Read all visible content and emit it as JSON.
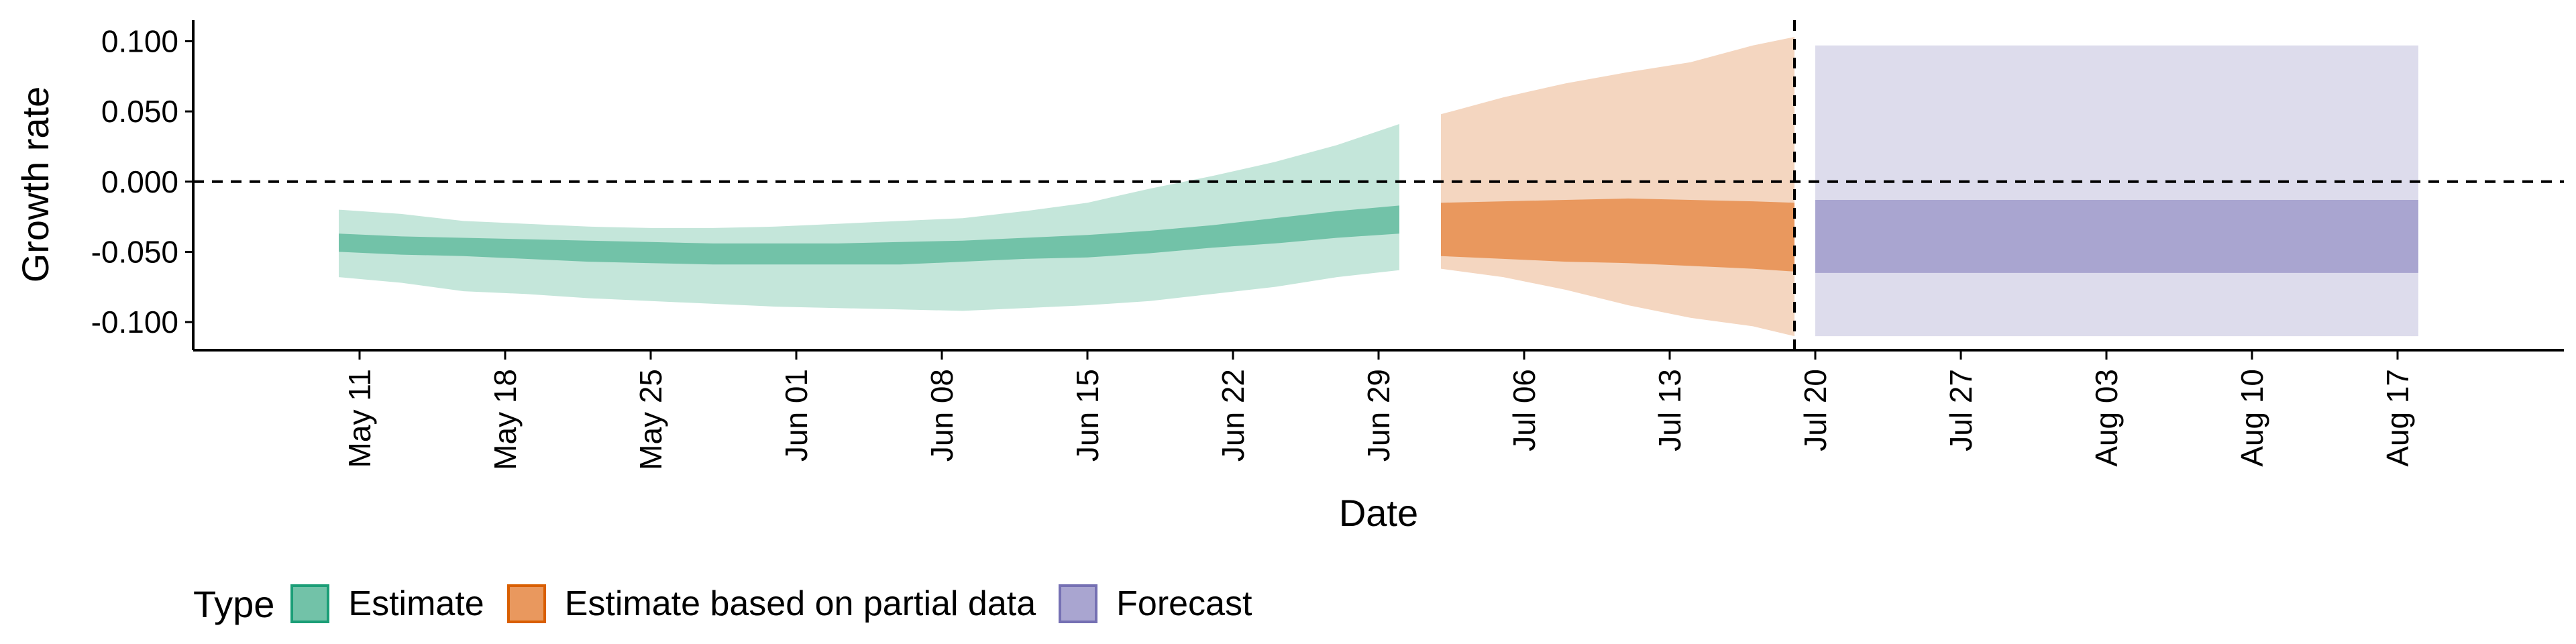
{
  "chart_data": {
    "type": "area",
    "title": "",
    "xlabel": "Date",
    "ylabel": "Growth rate",
    "ylim": [
      -0.12,
      0.115
    ],
    "yticks": [
      -0.1,
      -0.05,
      0,
      0.05,
      0.1
    ],
    "ytick_labels": [
      "-0.100",
      "-0.050",
      "0.000",
      "0.050",
      "0.100"
    ],
    "xlim": [
      "2020-05-03",
      "2020-08-25"
    ],
    "xticks": [
      "2020-05-11",
      "2020-05-18",
      "2020-05-25",
      "2020-06-01",
      "2020-06-08",
      "2020-06-15",
      "2020-06-22",
      "2020-06-29",
      "2020-07-06",
      "2020-07-13",
      "2020-07-20",
      "2020-07-27",
      "2020-08-03",
      "2020-08-10",
      "2020-08-17"
    ],
    "xtick_labels": [
      "May 11",
      "May 18",
      "May 25",
      "Jun 01",
      "Jun 08",
      "Jun 15",
      "Jun 22",
      "Jun 29",
      "Jul 06",
      "Jul 13",
      "Jul 20",
      "Jul 27",
      "Aug 03",
      "Aug 10",
      "Aug 17"
    ],
    "hline": 0,
    "vline": "2020-07-19",
    "grid": false,
    "legend": {
      "title": "Type",
      "placement": "bottom-left",
      "items": [
        {
          "label": "Estimate",
          "fill": "#72c2a8",
          "stroke": "#1b9e77"
        },
        {
          "label": "Estimate based on partial data",
          "fill": "#e9985e",
          "stroke": "#d95f02"
        },
        {
          "label": "Forecast",
          "fill": "#a9a5d0",
          "stroke": "#7570b3"
        }
      ]
    },
    "series": [
      {
        "name": "Estimate",
        "color_outer": "#c4e6da",
        "color_inner": "#72c2a8",
        "x": [
          "2020-05-10",
          "2020-05-13",
          "2020-05-16",
          "2020-05-19",
          "2020-05-22",
          "2020-05-25",
          "2020-05-28",
          "2020-05-31",
          "2020-06-03",
          "2020-06-06",
          "2020-06-09",
          "2020-06-12",
          "2020-06-15",
          "2020-06-18",
          "2020-06-21",
          "2020-06-24",
          "2020-06-27",
          "2020-06-30"
        ],
        "lower_90": [
          -0.068,
          -0.072,
          -0.078,
          -0.08,
          -0.083,
          -0.085,
          -0.087,
          -0.089,
          -0.09,
          -0.091,
          -0.092,
          -0.09,
          -0.088,
          -0.085,
          -0.08,
          -0.075,
          -0.068,
          -0.063
        ],
        "lower_50": [
          -0.05,
          -0.052,
          -0.053,
          -0.055,
          -0.057,
          -0.058,
          -0.059,
          -0.059,
          -0.059,
          -0.059,
          -0.057,
          -0.055,
          -0.054,
          -0.051,
          -0.047,
          -0.044,
          -0.04,
          -0.037
        ],
        "upper_50": [
          -0.037,
          -0.039,
          -0.04,
          -0.041,
          -0.042,
          -0.043,
          -0.044,
          -0.044,
          -0.044,
          -0.043,
          -0.042,
          -0.04,
          -0.038,
          -0.035,
          -0.031,
          -0.026,
          -0.021,
          -0.017
        ],
        "upper_90": [
          -0.02,
          -0.023,
          -0.028,
          -0.03,
          -0.032,
          -0.033,
          -0.033,
          -0.032,
          -0.03,
          -0.028,
          -0.026,
          -0.021,
          -0.015,
          -0.005,
          0.004,
          0.014,
          0.026,
          0.041
        ]
      },
      {
        "name": "Estimate based on partial data",
        "color_outer": "#f4d6c0",
        "color_inner": "#e9985e",
        "x": [
          "2020-07-02",
          "2020-07-05",
          "2020-07-08",
          "2020-07-11",
          "2020-07-14",
          "2020-07-17",
          "2020-07-19"
        ],
        "lower_90": [
          -0.062,
          -0.068,
          -0.077,
          -0.088,
          -0.097,
          -0.103,
          -0.11
        ],
        "lower_50": [
          -0.053,
          -0.055,
          -0.057,
          -0.058,
          -0.06,
          -0.062,
          -0.064
        ],
        "upper_50": [
          -0.015,
          -0.014,
          -0.013,
          -0.012,
          -0.013,
          -0.014,
          -0.015
        ],
        "upper_90": [
          0.048,
          0.06,
          0.07,
          0.078,
          0.085,
          0.097,
          0.103
        ]
      },
      {
        "name": "Forecast",
        "color_outer": "#dddcec",
        "color_inner": "#a9a5d0",
        "x": [
          "2020-07-20",
          "2020-08-18"
        ],
        "lower_90": [
          -0.11,
          -0.11
        ],
        "lower_50": [
          -0.065,
          -0.065
        ],
        "upper_50": [
          -0.013,
          -0.013
        ],
        "upper_90": [
          0.097,
          0.097
        ]
      }
    ]
  }
}
